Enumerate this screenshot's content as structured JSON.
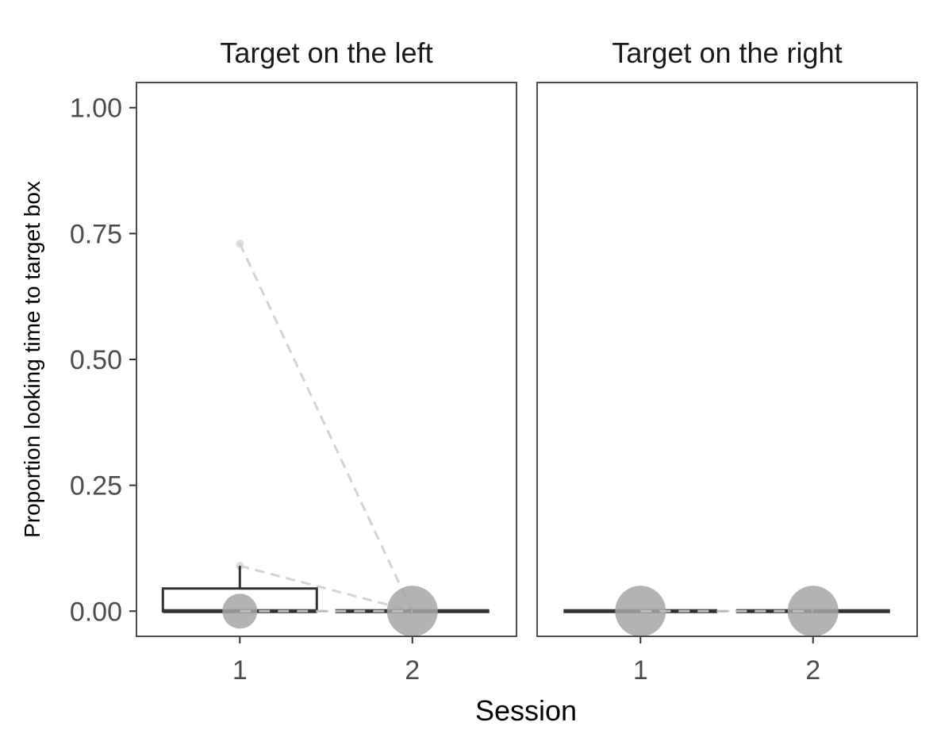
{
  "chart_data": {
    "type": "boxplot",
    "xlabel": "Session",
    "ylabel": "Proportion looking time to target box",
    "ylim": [
      -0.05,
      1.05
    ],
    "yticks": [
      "0.00",
      "0.25",
      "0.50",
      "0.75",
      "1.00"
    ],
    "ytick_values": [
      0,
      0.25,
      0.5,
      0.75,
      1.0
    ],
    "categories": [
      "1",
      "2"
    ],
    "grid": false,
    "colors": {
      "box": "#333333",
      "point": "#a6a6a6",
      "line": "#d3d3d3",
      "panel_border": "#4d4d4d"
    },
    "facets": [
      {
        "title": "Target on the left",
        "boxes": [
          {
            "session": "1",
            "min": 0.0,
            "q1": 0.0,
            "median": 0.0,
            "q3": 0.045,
            "max": 0.09
          },
          {
            "session": "2",
            "min": 0.0,
            "q1": 0.0,
            "median": 0.0,
            "q3": 0.0,
            "max": 0.0
          }
        ],
        "mean_points": [
          {
            "session": "1",
            "value": 0.0,
            "n": "small"
          },
          {
            "session": "2",
            "value": 0.0,
            "n": "large"
          }
        ],
        "individual_lines": [
          {
            "from": 0.73,
            "to": 0.0
          },
          {
            "from": 0.09,
            "to": 0.0
          },
          {
            "from": 0.0,
            "to": 0.0
          }
        ]
      },
      {
        "title": "Target on the right",
        "boxes": [
          {
            "session": "1",
            "min": 0.0,
            "q1": 0.0,
            "median": 0.0,
            "q3": 0.0,
            "max": 0.0
          },
          {
            "session": "2",
            "min": 0.0,
            "q1": 0.0,
            "median": 0.0,
            "q3": 0.0,
            "max": 0.0
          }
        ],
        "mean_points": [
          {
            "session": "1",
            "value": 0.0,
            "n": "large"
          },
          {
            "session": "2",
            "value": 0.0,
            "n": "large"
          }
        ],
        "individual_lines": [
          {
            "from": 0.0,
            "to": 0.0
          }
        ]
      }
    ]
  }
}
